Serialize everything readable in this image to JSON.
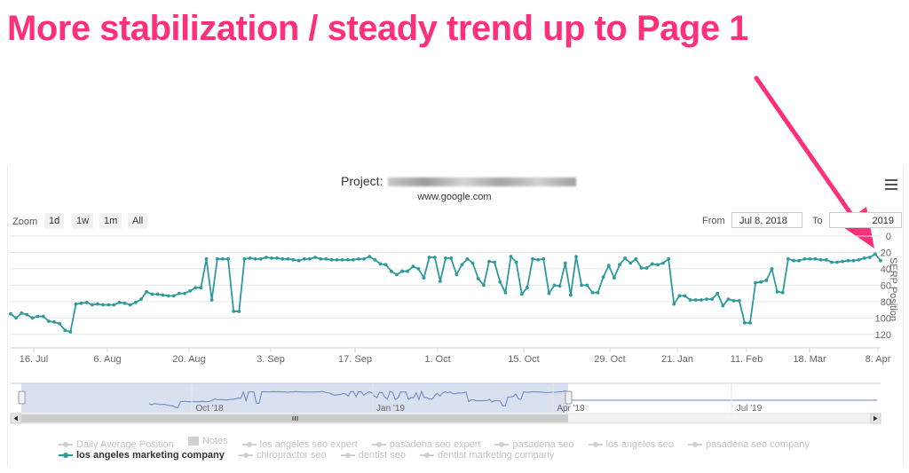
{
  "headline": "More stabilization / steady trend up to Page 1",
  "project": {
    "label": "Project:",
    "engine": "www.google.com"
  },
  "toolbar": {
    "zoom_label": "Zoom",
    "zoom_buttons": [
      "1d",
      "1w",
      "1m",
      "All"
    ],
    "from_label": "From",
    "from_value": "Jul 8, 2018",
    "to_label": "To",
    "to_value": "2019"
  },
  "chart_data": {
    "type": "line",
    "ylabel": "SERP Position",
    "y_reversed": true,
    "ylim": [
      0,
      130
    ],
    "yticks": [
      0,
      20,
      40,
      60,
      80,
      100,
      120
    ],
    "x_ticks": [
      "16. Jul",
      "6. Aug",
      "20. Aug",
      "3. Sep",
      "17. Sep",
      "1. Oct",
      "15. Oct",
      "29. Oct",
      "21. Jan",
      "11. Feb",
      "18. Mar",
      "8. Apr"
    ],
    "navigator_ticks": [
      "Oct '18",
      "Jan '19",
      "Apr '19",
      "Jul '19"
    ],
    "grid": true,
    "series": [
      {
        "name": "los angeles marketing company",
        "color": "#2e9a9c",
        "values": [
          95,
          100,
          94,
          96,
          100,
          98,
          98,
          104,
          105,
          107,
          115,
          117,
          83,
          82,
          81,
          84,
          83,
          84,
          84,
          84,
          81,
          82,
          84,
          81,
          77,
          68,
          71,
          71,
          72,
          73,
          73,
          70,
          70,
          67,
          63,
          63,
          28,
          78,
          28,
          28,
          28,
          92,
          92,
          28,
          27,
          28,
          28,
          26,
          27,
          27,
          28,
          28,
          29,
          30,
          28,
          28,
          26,
          28,
          28,
          29,
          29,
          29,
          29,
          29,
          28,
          28,
          25,
          29,
          34,
          35,
          43,
          47,
          43,
          43,
          37,
          40,
          51,
          26,
          26,
          55,
          27,
          27,
          47,
          35,
          28,
          33,
          52,
          60,
          31,
          32,
          56,
          69,
          25,
          32,
          71,
          63,
          28,
          29,
          28,
          70,
          60,
          61,
          33,
          72,
          25,
          60,
          60,
          69,
          69,
          50,
          36,
          51,
          35,
          27,
          33,
          28,
          39,
          39,
          34,
          35,
          33,
          28,
          83,
          73,
          73,
          78,
          78,
          78,
          77,
          77,
          70,
          85,
          77,
          79,
          79,
          106,
          106,
          57,
          56,
          54,
          40,
          68,
          69,
          28,
          30,
          30,
          28,
          28,
          28,
          29,
          29,
          32,
          32,
          31,
          30,
          30,
          29,
          27,
          26,
          22,
          30
        ]
      }
    ],
    "legend": [
      {
        "name": "Daily Average Position",
        "active": false
      },
      {
        "name": "Notes",
        "active": false
      },
      {
        "name": "los angeles seo expert",
        "active": false
      },
      {
        "name": "pasadena seo expert",
        "active": false
      },
      {
        "name": "pasadena seo",
        "active": false
      },
      {
        "name": "los angeles seo",
        "active": false
      },
      {
        "name": "pasadena seo company",
        "active": false
      },
      {
        "name": "los angeles marketing company",
        "active": true
      },
      {
        "name": "chiropractor seo",
        "active": false
      },
      {
        "name": "dentist seo",
        "active": false
      },
      {
        "name": "dentist marketing company",
        "active": false
      }
    ]
  }
}
